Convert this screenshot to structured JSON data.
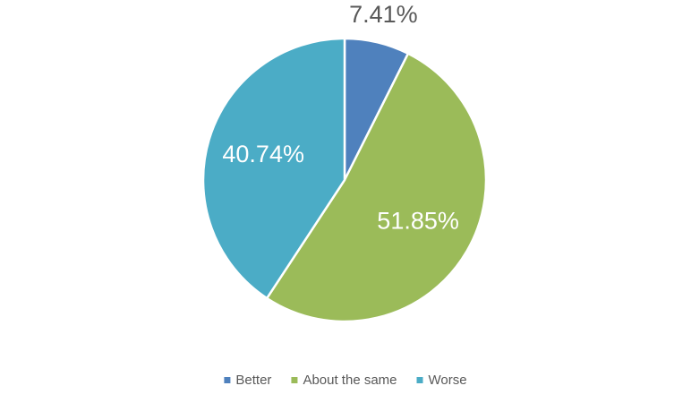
{
  "chart_data": {
    "type": "pie",
    "categories": [
      "Better",
      "About the same",
      "Worse"
    ],
    "values": [
      7.41,
      51.85,
      40.74
    ],
    "value_labels": [
      "7.41%",
      "51.85%",
      "40.74%"
    ],
    "colors": [
      "#4f81bd",
      "#9bbb59",
      "#4bacc6"
    ],
    "legend": "bottom"
  }
}
